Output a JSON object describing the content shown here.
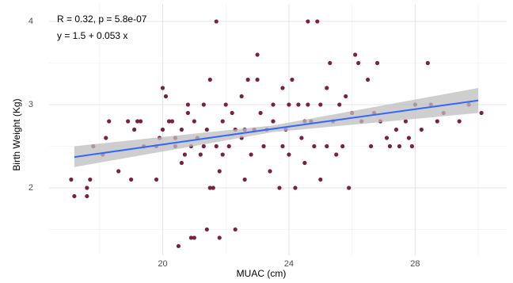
{
  "chart_data": {
    "type": "scatter",
    "xlabel": "MUAC (cm)",
    "ylabel": "Birth Weight (Kg)",
    "annotations": [
      "R = 0.32, p = 5.8e-07",
      "y = 1.5 + 0.053 x"
    ],
    "color": "#7b2045",
    "x": [
      17.1,
      17.2,
      17.6,
      17.6,
      17.7,
      17.8,
      18.1,
      18.2,
      18.3,
      18.6,
      18.9,
      19.0,
      19.1,
      19.2,
      19.3,
      19.4,
      19.8,
      19.8,
      19.9,
      20.0,
      20.0,
      20.1,
      20.2,
      20.3,
      20.4,
      20.4,
      20.5,
      20.6,
      20.6,
      20.7,
      20.8,
      20.8,
      20.9,
      20.9,
      21.0,
      21.0,
      21.1,
      21.2,
      21.3,
      21.3,
      21.4,
      21.4,
      21.5,
      21.5,
      21.6,
      21.7,
      21.7,
      21.8,
      21.8,
      21.9,
      21.9,
      22.0,
      22.1,
      22.2,
      22.3,
      22.3,
      22.5,
      22.5,
      22.6,
      22.6,
      22.7,
      22.8,
      22.9,
      23.0,
      23.0,
      23.1,
      23.2,
      23.3,
      23.4,
      23.5,
      23.5,
      23.7,
      23.8,
      23.8,
      23.9,
      24.0,
      24.0,
      24.1,
      24.2,
      24.3,
      24.4,
      24.5,
      24.5,
      24.6,
      24.6,
      24.7,
      24.8,
      24.9,
      25.0,
      25.0,
      25.2,
      25.2,
      25.3,
      25.4,
      25.5,
      25.6,
      25.7,
      25.8,
      25.9,
      26.0,
      26.1,
      26.2,
      26.3,
      26.5,
      26.6,
      26.7,
      26.8,
      26.9,
      27.1,
      27.2,
      27.4,
      27.5,
      27.7,
      27.8,
      27.9,
      28.0,
      28.2,
      28.4,
      28.5,
      28.7,
      28.9,
      29.4,
      29.7,
      30.1
    ],
    "values": [
      2.1,
      1.9,
      2.0,
      1.9,
      2.1,
      2.5,
      2.4,
      2.6,
      2.8,
      2.2,
      2.8,
      2.1,
      2.7,
      2.8,
      2.8,
      2.5,
      2.1,
      2.5,
      2.6,
      2.7,
      3.2,
      3.1,
      2.8,
      2.8,
      2.6,
      2.5,
      1.3,
      2.3,
      2.7,
      2.4,
      2.9,
      3.0,
      2.5,
      1.4,
      1.4,
      2.8,
      2.6,
      2.4,
      3.0,
      2.5,
      1.5,
      2.7,
      3.3,
      2.0,
      2.0,
      2.5,
      4.0,
      1.4,
      2.2,
      2.4,
      2.8,
      3.0,
      2.5,
      2.9,
      1.5,
      2.7,
      2.6,
      3.1,
      2.1,
      2.7,
      3.3,
      2.4,
      2.7,
      3.6,
      3.3,
      2.9,
      2.5,
      2.7,
      2.2,
      2.8,
      3.0,
      2.0,
      2.5,
      3.2,
      2.7,
      3.0,
      2.4,
      3.3,
      2.0,
      3.0,
      2.6,
      2.8,
      2.3,
      4.0,
      3.0,
      2.8,
      2.5,
      4.0,
      3.0,
      2.1,
      2.5,
      3.2,
      3.5,
      2.8,
      2.4,
      3.0,
      2.5,
      3.1,
      2.0,
      2.9,
      3.6,
      3.5,
      2.8,
      3.3,
      2.5,
      2.9,
      3.5,
      2.8,
      2.6,
      2.5,
      2.7,
      2.5,
      2.8,
      2.6,
      2.5,
      3.0,
      2.7,
      3.5,
      3.0,
      2.8,
      2.9,
      2.8,
      3.0,
      2.9
    ],
    "fit": {
      "color": "#3366ff",
      "band_color": "#bdbdbd",
      "x": [
        17.2,
        23.5,
        30.0
      ],
      "values": [
        2.37,
        2.71,
        3.05
      ],
      "lower": [
        2.25,
        2.67,
        2.9
      ],
      "upper": [
        2.5,
        2.75,
        3.2
      ]
    },
    "xlim": [
      16.4,
      30.9
    ],
    "ylim": [
      1.19,
      4.21
    ],
    "xticks": [
      20,
      24,
      28
    ],
    "yticks": [
      2,
      3,
      4
    ],
    "grid": true,
    "minor_grid": true
  }
}
